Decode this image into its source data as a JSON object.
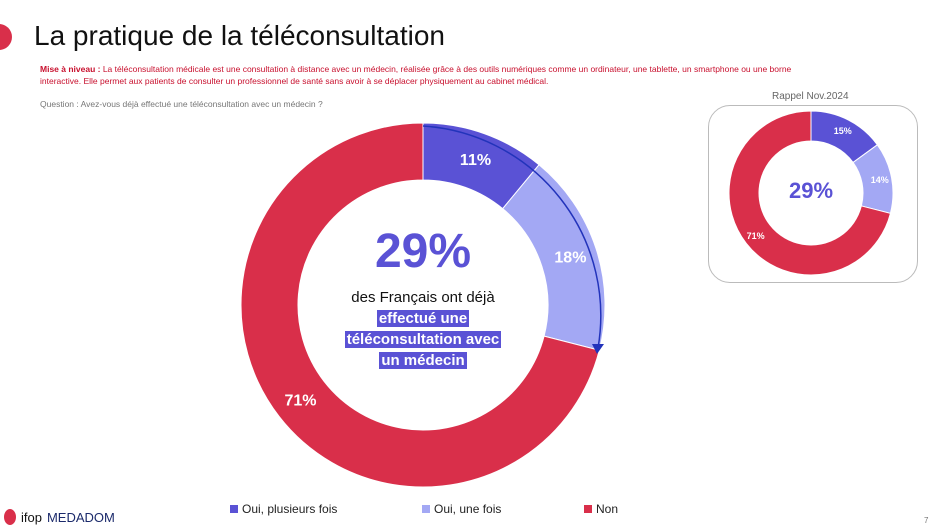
{
  "title": "La pratique de la téléconsultation",
  "intro": {
    "label": "Mise à niveau :",
    "text": " La téléconsultation médicale est une consultation à distance avec un médecin, réalisée grâce à des outils numériques comme un ordinateur, une tablette, un smartphone ou une borne interactive. Elle permet aux patients de consulter un professionnel de santé sans avoir à se déplacer physiquement au cabinet médical."
  },
  "question": "Question : Avez-vous déjà effectué une téléconsultation avec un médecin ?",
  "center": {
    "value": "29%",
    "line1": "des Français ont déjà",
    "hl1": "effectué une",
    "hl2": "téléconsultation avec",
    "hl3": "un médecin"
  },
  "colors": {
    "oui_plusieurs": "#5a52d5",
    "oui_une": "#a3a8f4",
    "non": "#d92f4a"
  },
  "chart_data": [
    {
      "type": "pie",
      "subtype": "donut",
      "categories": [
        "Oui, plusieurs fois",
        "Oui, une fois",
        "Non"
      ],
      "values": [
        11,
        18,
        71
      ],
      "labels": [
        "11%",
        "18%",
        "71%"
      ],
      "legend": "bottom"
    },
    {
      "type": "pie",
      "subtype": "donut",
      "title": "Rappel Nov.2024",
      "categories": [
        "Oui, plusieurs fois",
        "Oui, une fois",
        "Non"
      ],
      "values": [
        15,
        14,
        71
      ],
      "labels": [
        "15%",
        "14%",
        "71%"
      ],
      "center": "29%"
    }
  ],
  "legend": [
    "Oui, plusieurs fois",
    "Oui, une fois",
    "Non"
  ],
  "logos": {
    "ifop": "ifop",
    "medadom": "MEDADOM"
  },
  "page_number": "7"
}
